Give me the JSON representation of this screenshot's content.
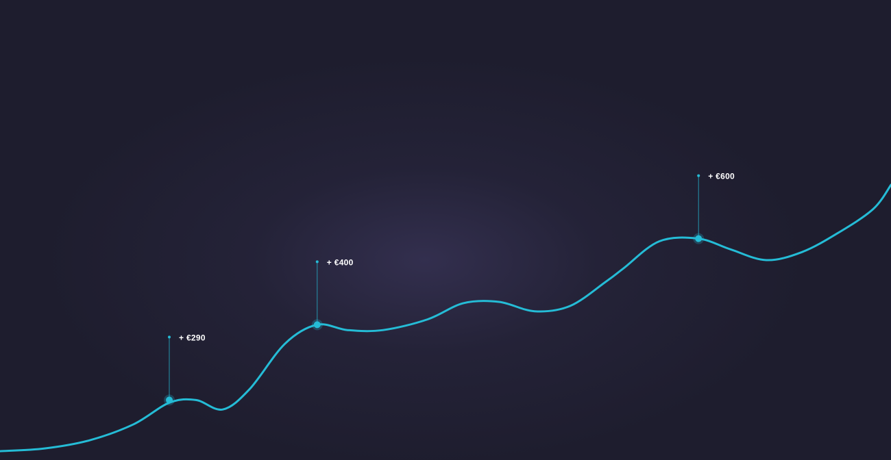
{
  "chart_data": {
    "type": "line",
    "title": "",
    "xlabel": "",
    "ylabel": "",
    "grid": false,
    "legend": "none",
    "xlim": [
      0,
      100
    ],
    "ylim": [
      0,
      100
    ],
    "series": [
      {
        "color": "#25bcd6",
        "x": [
          0,
          5,
          10,
          15,
          19,
          22,
          25,
          28,
          32,
          35.6,
          39,
          43,
          48,
          52,
          56,
          60,
          64,
          68,
          70,
          74,
          78.4,
          82,
          86,
          90,
          94,
          98,
          100
        ],
        "y": [
          1,
          2,
          5,
          11,
          19,
          20,
          16.5,
          24,
          41,
          48,
          46,
          46,
          50,
          56,
          56.5,
          53,
          55,
          64,
          69,
          79,
          80,
          76,
          72,
          75,
          82,
          91,
          100
        ]
      }
    ],
    "annotations": [
      {
        "x": 19,
        "y": 20,
        "label": "+ €290"
      },
      {
        "x": 35.6,
        "y": 48,
        "label": "+ €400"
      },
      {
        "x": 78.4,
        "y": 80,
        "label": "+ €600"
      }
    ]
  },
  "colors": {
    "background": "#1e1d2e",
    "line": "#25bcd6",
    "label": "#ffffff"
  }
}
